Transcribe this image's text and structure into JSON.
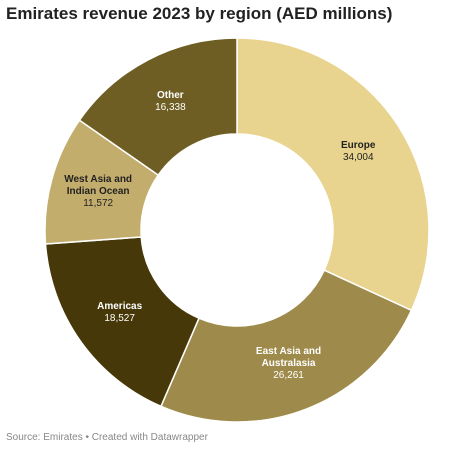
{
  "chart_data": {
    "type": "donut",
    "title": "Emirates revenue 2023 by region (AED millions)",
    "categories": [
      "Europe",
      "East Asia and Australasia",
      "Americas",
      "West Asia and Indian Ocean",
      "Other"
    ],
    "values": [
      34004,
      26261,
      18527,
      11572,
      16338
    ],
    "value_labels": [
      "34,004",
      "26,261",
      "18,527",
      "11,572",
      "16,338"
    ],
    "colors": [
      "#e8d48e",
      "#9e8a4a",
      "#463808",
      "#c3ad6d",
      "#6f5e24"
    ],
    "source": "Source: Emirates • Created with Datawrapper"
  }
}
